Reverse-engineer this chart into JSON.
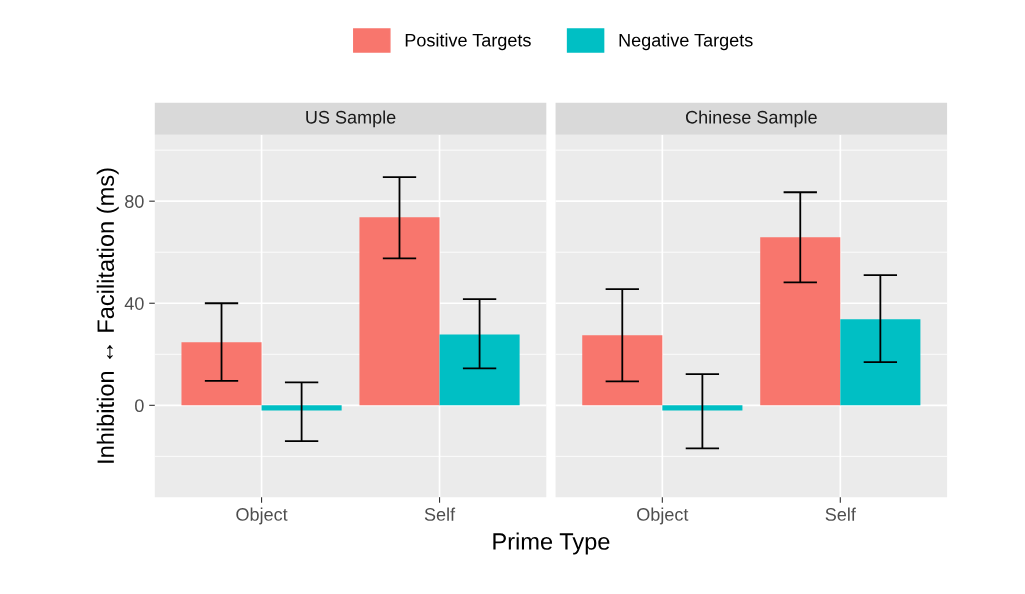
{
  "chart_data": [
    {
      "type": "bar",
      "title": "US Sample",
      "xlabel": "Prime Type",
      "ylabel": "Inhibition ↔ Facilitation (ms)",
      "categories": [
        "Object",
        "Self"
      ],
      "ylim": [
        -36,
        106
      ],
      "yticks": [
        0,
        40,
        80
      ],
      "grid": true,
      "legend": "top",
      "series": [
        {
          "name": "Positive Targets",
          "color": "#f8766d",
          "values": [
            24.7,
            73.7
          ],
          "errors": [
            [
              9.6,
              40
            ],
            [
              57.6,
              89.4
            ]
          ]
        },
        {
          "name": "Negative Targets",
          "color": "#00bfc4",
          "values": [
            -2,
            27.8
          ],
          "errors": [
            [
              -14,
              9
            ],
            [
              14.5,
              41.6
            ]
          ]
        }
      ]
    },
    {
      "type": "bar",
      "title": "Chinese Sample",
      "categories": [
        "Object",
        "Self"
      ],
      "ylim": [
        -36,
        106
      ],
      "yticks": [
        0,
        40,
        80
      ],
      "grid": true,
      "tick_labels": "x",
      "series": [
        {
          "color": "#f8766d",
          "values": [
            27.5,
            65.9
          ],
          "errors": [
            [
              9.4,
              45.5
            ],
            [
              48.2,
              83.5
            ]
          ]
        },
        {
          "color": "#00bfc4",
          "values": [
            -2,
            33.7
          ],
          "errors": [
            [
              -16.9,
              12.2
            ],
            [
              16.9,
              51
            ]
          ]
        }
      ]
    }
  ]
}
